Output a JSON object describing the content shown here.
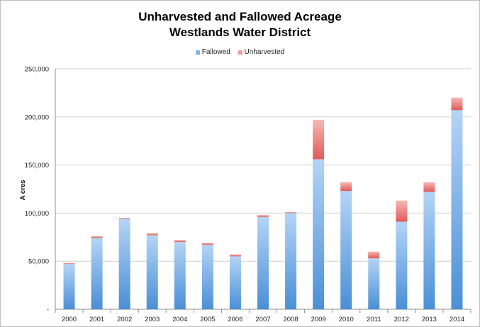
{
  "chart_data": {
    "type": "bar",
    "stacked": true,
    "title": "Unharvested and Fallowed Acreage",
    "subtitle": "Westlands Water District",
    "ylabel": "A cres",
    "xlabel": "",
    "ylim": [
      0,
      250000
    ],
    "yticks": [
      0,
      50000,
      100000,
      150000,
      200000,
      250000
    ],
    "ytick_labels": [
      "-",
      "50,000",
      "100,000",
      "150,000",
      "200,000",
      "250,000"
    ],
    "grid": "horizontal",
    "legend_position": "top",
    "categories": [
      "2000",
      "2001",
      "2002",
      "2003",
      "2004",
      "2005",
      "2006",
      "2007",
      "2008",
      "2009",
      "2010",
      "2011",
      "2012",
      "2013",
      "2014"
    ],
    "series": [
      {
        "name": "Fallowed",
        "color": "#5b9bd5",
        "values": [
          47000,
          74000,
          94000,
          77000,
          70000,
          67000,
          55000,
          96000,
          100000,
          156000,
          123000,
          53000,
          91000,
          122000,
          207000
        ]
      },
      {
        "name": "Unharvested",
        "color": "#e46c6c",
        "values": [
          1000,
          2000,
          1000,
          2000,
          2000,
          2000,
          2000,
          2000,
          1000,
          41000,
          9000,
          7000,
          22000,
          10000,
          13000
        ]
      }
    ]
  }
}
